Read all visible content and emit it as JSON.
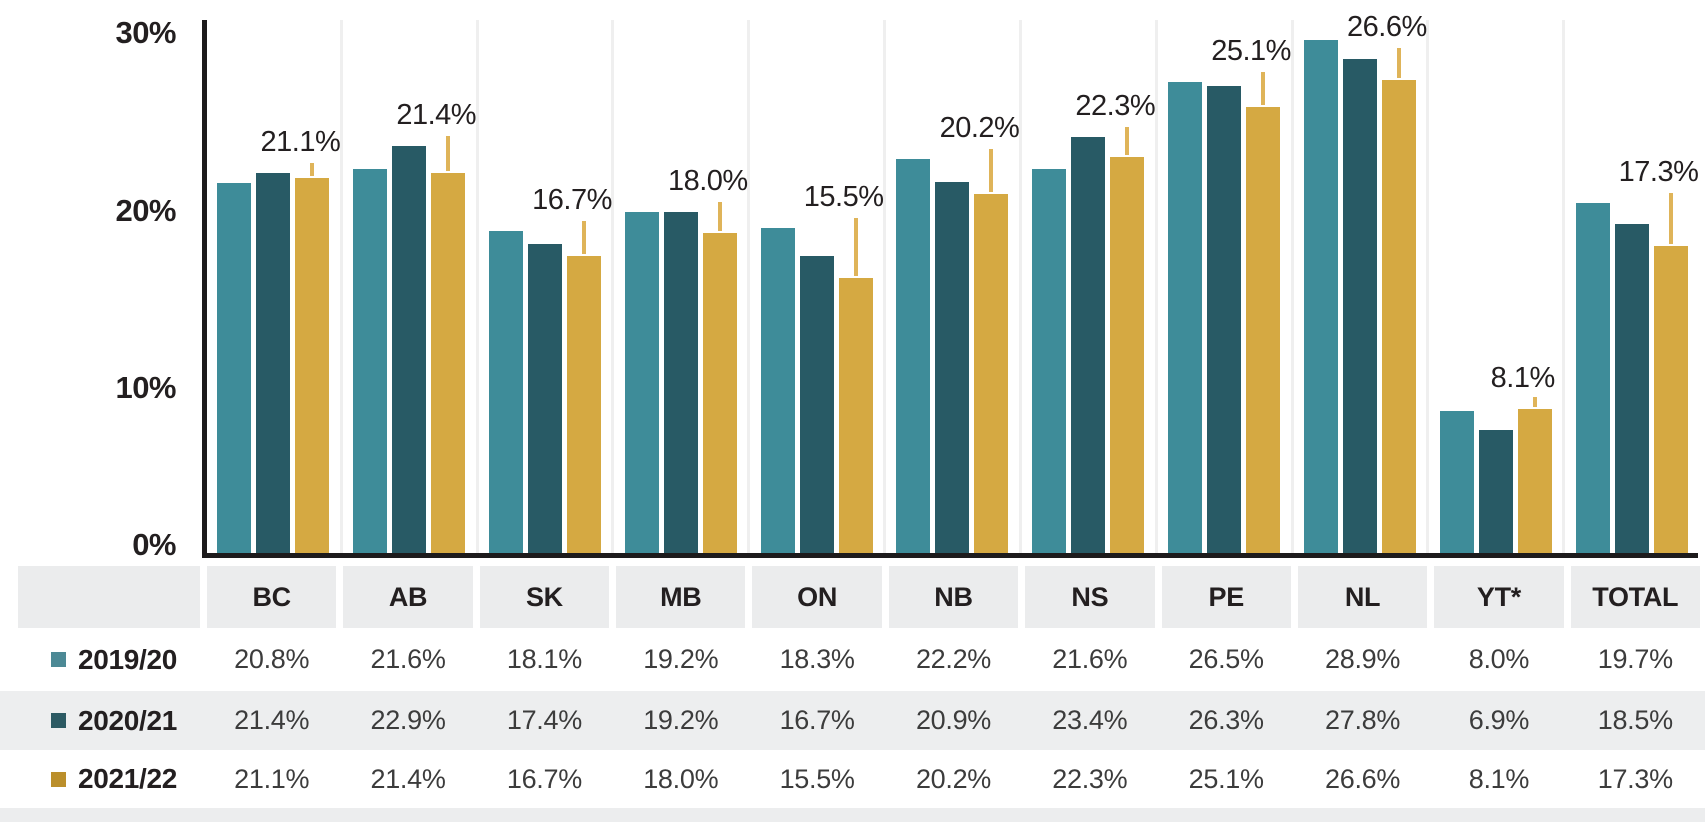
{
  "chart_data": {
    "type": "bar",
    "title": "",
    "categories": [
      "BC",
      "AB",
      "SK",
      "MB",
      "ON",
      "NB",
      "NS",
      "PE",
      "NL",
      "YT*",
      "TOTAL"
    ],
    "series": [
      {
        "name": "2019/20",
        "color": "#3e8c99",
        "legend_color": "#4c8995",
        "values": [
          20.8,
          21.6,
          18.1,
          19.2,
          18.3,
          22.2,
          21.6,
          26.5,
          28.9,
          8.0,
          19.7
        ]
      },
      {
        "name": "2020/21",
        "color": "#285a65",
        "legend_color": "#2c5a63",
        "values": [
          21.4,
          22.9,
          17.4,
          19.2,
          16.7,
          20.9,
          23.4,
          26.3,
          27.8,
          6.9,
          18.5
        ]
      },
      {
        "name": "2021/22",
        "color": "#d5a942",
        "legend_color": "#bb8f2b",
        "values": [
          21.1,
          21.4,
          16.7,
          18.0,
          15.5,
          20.2,
          22.3,
          25.1,
          26.6,
          8.1,
          17.3
        ]
      }
    ],
    "bar_labels_series": "2021/22",
    "bar_labels": [
      "21.1%",
      "21.4%",
      "16.7%",
      "18.0%",
      "15.5%",
      "20.2%",
      "22.3%",
      "25.1%",
      "26.6%",
      "8.1%",
      "17.3%"
    ],
    "yticks": [
      {
        "label": "30%",
        "value": 30
      },
      {
        "label": "20%",
        "value": 20
      },
      {
        "label": "10%",
        "value": 10
      },
      {
        "label": "0%",
        "value": 0
      }
    ],
    "ylim": [
      0,
      30
    ],
    "xlabel": "",
    "ylabel": "",
    "grid": "vertical-group-separators",
    "legend_position": "table-row-labels"
  },
  "table": {
    "header": [
      "",
      "BC",
      "AB",
      "SK",
      "MB",
      "ON",
      "NB",
      "NS",
      "PE",
      "NL",
      "YT*",
      "TOTAL"
    ],
    "rows": [
      {
        "label": "2019/20",
        "values": [
          "20.8%",
          "21.6%",
          "18.1%",
          "19.2%",
          "18.3%",
          "22.2%",
          "21.6%",
          "26.5%",
          "28.9%",
          "8.0%",
          "19.7%"
        ]
      },
      {
        "label": "2020/21",
        "values": [
          "21.4%",
          "22.9%",
          "17.4%",
          "19.2%",
          "16.7%",
          "20.9%",
          "23.4%",
          "26.3%",
          "27.8%",
          "6.9%",
          "18.5%"
        ]
      },
      {
        "label": "2021/22",
        "values": [
          "21.1%",
          "21.4%",
          "16.7%",
          "18.0%",
          "15.5%",
          "20.2%",
          "22.3%",
          "25.1%",
          "26.6%",
          "8.1%",
          "17.3%"
        ]
      }
    ]
  },
  "colors": {
    "axis": "#1d1b1c",
    "whisker": "#dfb459",
    "group_separator": "#efefef",
    "header_cell_bg": "#ebeced",
    "alt_row_bg": "#edeeef",
    "bottom_strip_bg": "#ecedee",
    "value_text": "#3c3c3c",
    "label_text": "#231f20"
  }
}
